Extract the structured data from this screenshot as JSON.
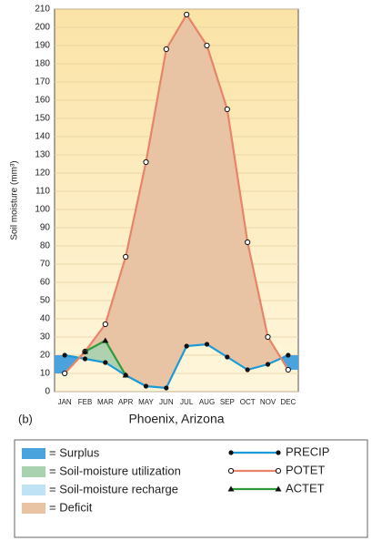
{
  "chart_data": {
    "type": "line",
    "label": "(b)",
    "xlabel": "Phoenix, Arizona",
    "ylabel": "Soil moisture (mm³)",
    "categories": [
      "JAN",
      "FEB",
      "MAR",
      "APR",
      "MAY",
      "JUN",
      "JUL",
      "AUG",
      "SEP",
      "OCT",
      "NOV",
      "DEC"
    ],
    "series": [
      {
        "name": "PRECIP",
        "color": "#1a9ad6",
        "values": [
          20,
          18,
          16,
          9,
          3,
          2,
          25,
          26,
          19,
          12,
          15,
          20
        ]
      },
      {
        "name": "POTET",
        "color": "#e8846a",
        "values": [
          10,
          22,
          37,
          74,
          126,
          188,
          207,
          190,
          155,
          82,
          30,
          12
        ]
      },
      {
        "name": "ACTET",
        "color": "#2e9a3c",
        "values": [
          null,
          22,
          28,
          9,
          null,
          null,
          null,
          null,
          null,
          null,
          null,
          null
        ]
      }
    ],
    "area_legend": [
      {
        "label": "= Surplus",
        "color": "#4aa3dc"
      },
      {
        "label": "= Soil-moisture utilization",
        "color": "#a9d3b0"
      },
      {
        "label": "= Soil-moisture recharge",
        "color": "#bfe3f5"
      },
      {
        "label": "= Deficit",
        "color": "#e8c4a4"
      }
    ],
    "ylim": [
      0,
      210
    ],
    "yticks": [
      0,
      10,
      20,
      30,
      40,
      50,
      60,
      70,
      80,
      90,
      100,
      110,
      120,
      130,
      140,
      150,
      160,
      170,
      180,
      190,
      200,
      210
    ],
    "grid": true
  }
}
